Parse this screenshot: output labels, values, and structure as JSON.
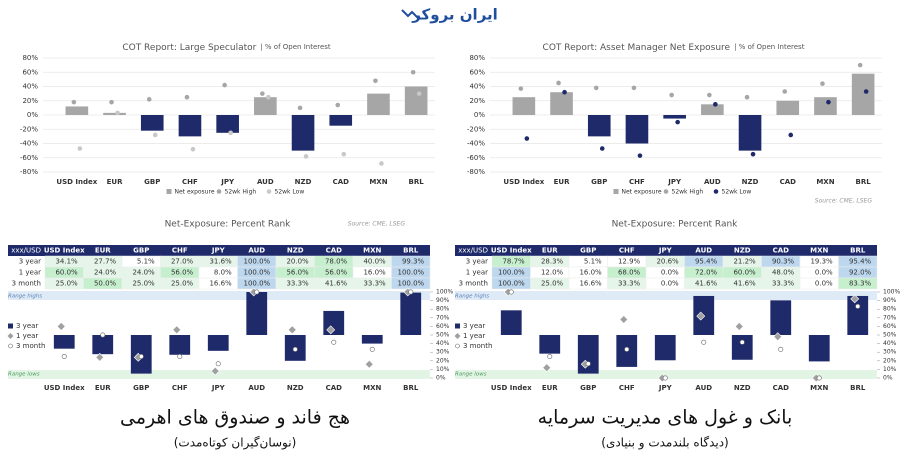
{
  "logo": "ایران بروکر",
  "captions": [
    {
      "title": "هج فاند و صندوق های اهرمی",
      "subtitle": "(نوسان‌گیران کوتاه‌مدت)"
    },
    {
      "title": "بانک و غول های مدیریت سرمایه",
      "subtitle": "(دیدگاه بلندمدت و بنیادی)"
    }
  ],
  "chart_data": [
    {
      "type": "bar",
      "title": "COT Report: Large Speculator",
      "subtitle": "| % of Open Interest",
      "categories": [
        "USD Index",
        "EUR",
        "GBP",
        "CHF",
        "JPY",
        "AUD",
        "NZD",
        "CAD",
        "MXN",
        "BRL"
      ],
      "series": [
        {
          "name": "Net exposure",
          "mark": "bar",
          "color": "#a6a6a6",
          "negative_color": "#1f2a6b",
          "values": [
            12,
            3,
            -22,
            -30,
            -25,
            25,
            -50,
            -15,
            30,
            40
          ]
        },
        {
          "name": "52wk High",
          "mark": "dot",
          "color": "#a6a6a6",
          "values": [
            18,
            18,
            22,
            25,
            42,
            30,
            10,
            14,
            48,
            60
          ]
        },
        {
          "name": "52wk Low",
          "mark": "dot",
          "color": "#c8c8c8",
          "values": [
            -47,
            3,
            -28,
            -48,
            -25,
            25,
            -58,
            -55,
            -68,
            30
          ]
        }
      ],
      "ylim": [
        -80,
        80
      ],
      "yticks": [
        {
          "value": 80,
          "label": "80%"
        },
        {
          "value": 60,
          "label": "60%"
        },
        {
          "value": 40,
          "label": "40%"
        },
        {
          "value": 20,
          "label": "20%"
        },
        {
          "value": 0,
          "label": "0%"
        },
        {
          "value": -20,
          "label": "-20%"
        },
        {
          "value": -40,
          "label": "-40%"
        },
        {
          "value": -60,
          "label": "-60%"
        },
        {
          "value": -80,
          "label": "-80%"
        }
      ],
      "grid": true
    },
    {
      "type": "range",
      "title": "Net-Exposure: Percent Rank",
      "source": "Source: CME, LSEG",
      "corner_label": "xxx/USD",
      "categories": [
        "USD Index",
        "EUR",
        "GBP",
        "CHF",
        "JPY",
        "AUD",
        "NZD",
        "CAD",
        "MXN",
        "BRL"
      ],
      "series": [
        {
          "name": "3 year",
          "mark": "box",
          "color": "#1f2a6b",
          "values": [
            34.1,
            27.7,
            5.1,
            27.0,
            31.6,
            100.0,
            20.0,
            78.0,
            40.0,
            99.3
          ],
          "value_labels": [
            "34.1%",
            "27.7%",
            "5.1%",
            "27.0%",
            "31.6%",
            "100.0%",
            "20.0%",
            "78.0%",
            "40.0%",
            "99.3%"
          ]
        },
        {
          "name": "1 year",
          "mark": "diamond",
          "color": "#a0a0a0",
          "values": [
            60.0,
            24.0,
            24.0,
            56.0,
            8.0,
            100.0,
            56.0,
            56.0,
            16.0,
            100.0
          ],
          "value_labels": [
            "60.0%",
            "24.0%",
            "24.0%",
            "56.0%",
            "8.0%",
            "100.0%",
            "56.0%",
            "56.0%",
            "16.0%",
            "100.0%"
          ]
        },
        {
          "name": "3 month",
          "mark": "circle",
          "color": "#ffffff",
          "values": [
            25.0,
            50.0,
            25.0,
            25.0,
            16.6,
            100.0,
            33.3,
            41.6,
            33.3,
            100.0
          ],
          "value_labels": [
            "25.0%",
            "50.0%",
            "25.0%",
            "25.0%",
            "16.6%",
            "100.0%",
            "33.3%",
            "41.6%",
            "33.3%",
            "100.0%"
          ]
        }
      ],
      "annotations": [
        "Range highs",
        "Range lows"
      ],
      "ylim": [
        0,
        100
      ],
      "yticks": [
        {
          "value": 100,
          "label": "100%"
        },
        {
          "value": 90,
          "label": "90%"
        },
        {
          "value": 80,
          "label": "80%"
        },
        {
          "value": 70,
          "label": "70%"
        },
        {
          "value": 60,
          "label": "60%"
        },
        {
          "value": 50,
          "label": "50%"
        },
        {
          "value": 40,
          "label": "40%"
        },
        {
          "value": 30,
          "label": "30%"
        },
        {
          "value": 20,
          "label": "20%"
        },
        {
          "value": 10,
          "label": "10%"
        },
        {
          "value": 0,
          "label": "0%"
        }
      ]
    },
    {
      "type": "bar",
      "title": "COT Report: Asset Manager Net Exposure",
      "subtitle": "| % of Open Interest",
      "source": "Source: CME, LSEG",
      "categories": [
        "USD Index",
        "EUR",
        "GBP",
        "CHF",
        "JPY",
        "AUD",
        "NZD",
        "CAD",
        "MXN",
        "BRL"
      ],
      "series": [
        {
          "name": "Net exposure",
          "mark": "bar",
          "color": "#a6a6a6",
          "negative_color": "#1f2a6b",
          "values": [
            25,
            32,
            -30,
            -40,
            -5,
            15,
            -50,
            20,
            25,
            58
          ]
        },
        {
          "name": "52wk High",
          "mark": "dot",
          "color": "#a6a6a6",
          "values": [
            37,
            45,
            38,
            38,
            28,
            28,
            25,
            33,
            44,
            70
          ]
        },
        {
          "name": "52wk Low",
          "mark": "dot",
          "color": "#1f2a6b",
          "values": [
            -33,
            32,
            -47,
            -57,
            -10,
            15,
            -55,
            -28,
            18,
            33
          ]
        }
      ],
      "ylim": [
        -80,
        80
      ],
      "yticks": [
        {
          "value": 80,
          "label": "80%"
        },
        {
          "value": 60,
          "label": "60%"
        },
        {
          "value": 40,
          "label": "40%"
        },
        {
          "value": 20,
          "label": "20%"
        },
        {
          "value": 0,
          "label": "0%"
        },
        {
          "value": -20,
          "label": "-20%"
        },
        {
          "value": -40,
          "label": "-40%"
        },
        {
          "value": -60,
          "label": "-60%"
        },
        {
          "value": -80,
          "label": "-80%"
        }
      ],
      "grid": true
    },
    {
      "type": "range",
      "title": "Net-Exposure: Percent Rank",
      "corner_label": "xxx/USD",
      "categories": [
        "USD Index",
        "EUR",
        "GBP",
        "CHF",
        "JPY",
        "AUD",
        "NZD",
        "CAD",
        "MXN",
        "BRL"
      ],
      "series": [
        {
          "name": "3 year",
          "mark": "box",
          "color": "#1f2a6b",
          "values": [
            78.7,
            28.3,
            5.1,
            12.9,
            20.6,
            95.4,
            21.2,
            90.3,
            19.3,
            95.4
          ],
          "value_labels": [
            "78.7%",
            "28.3%",
            "5.1%",
            "12.9%",
            "20.6%",
            "95.4%",
            "21.2%",
            "90.3%",
            "19.3%",
            "95.4%"
          ]
        },
        {
          "name": "1 year",
          "mark": "diamond",
          "color": "#a0a0a0",
          "values": [
            100.0,
            12.0,
            16.0,
            68.0,
            0.0,
            72.0,
            60.0,
            48.0,
            0.0,
            92.0
          ],
          "value_labels": [
            "100.0%",
            "12.0%",
            "16.0%",
            "68.0%",
            "0.0%",
            "72.0%",
            "60.0%",
            "48.0%",
            "0.0%",
            "92.0%"
          ]
        },
        {
          "name": "3 month",
          "mark": "circle",
          "color": "#ffffff",
          "values": [
            100.0,
            25.0,
            16.6,
            33.3,
            0.0,
            41.6,
            41.6,
            33.3,
            0.0,
            83.3
          ],
          "value_labels": [
            "100.0%",
            "25.0%",
            "16.6%",
            "33.3%",
            "0.0%",
            "41.6%",
            "41.6%",
            "33.3%",
            "0.0%",
            "83.3%"
          ]
        }
      ],
      "annotations": [
        "Range highs",
        "Range lows"
      ],
      "ylim": [
        0,
        100
      ],
      "yticks": [
        {
          "value": 100,
          "label": "100%"
        },
        {
          "value": 90,
          "label": "90%"
        },
        {
          "value": 80,
          "label": "80%"
        },
        {
          "value": 70,
          "label": "70%"
        },
        {
          "value": 60,
          "label": "60%"
        },
        {
          "value": 50,
          "label": "50%"
        },
        {
          "value": 40,
          "label": "40%"
        },
        {
          "value": 30,
          "label": "30%"
        },
        {
          "value": 20,
          "label": "20%"
        },
        {
          "value": 10,
          "label": "10%"
        },
        {
          "value": 0,
          "label": "0%"
        }
      ]
    }
  ]
}
